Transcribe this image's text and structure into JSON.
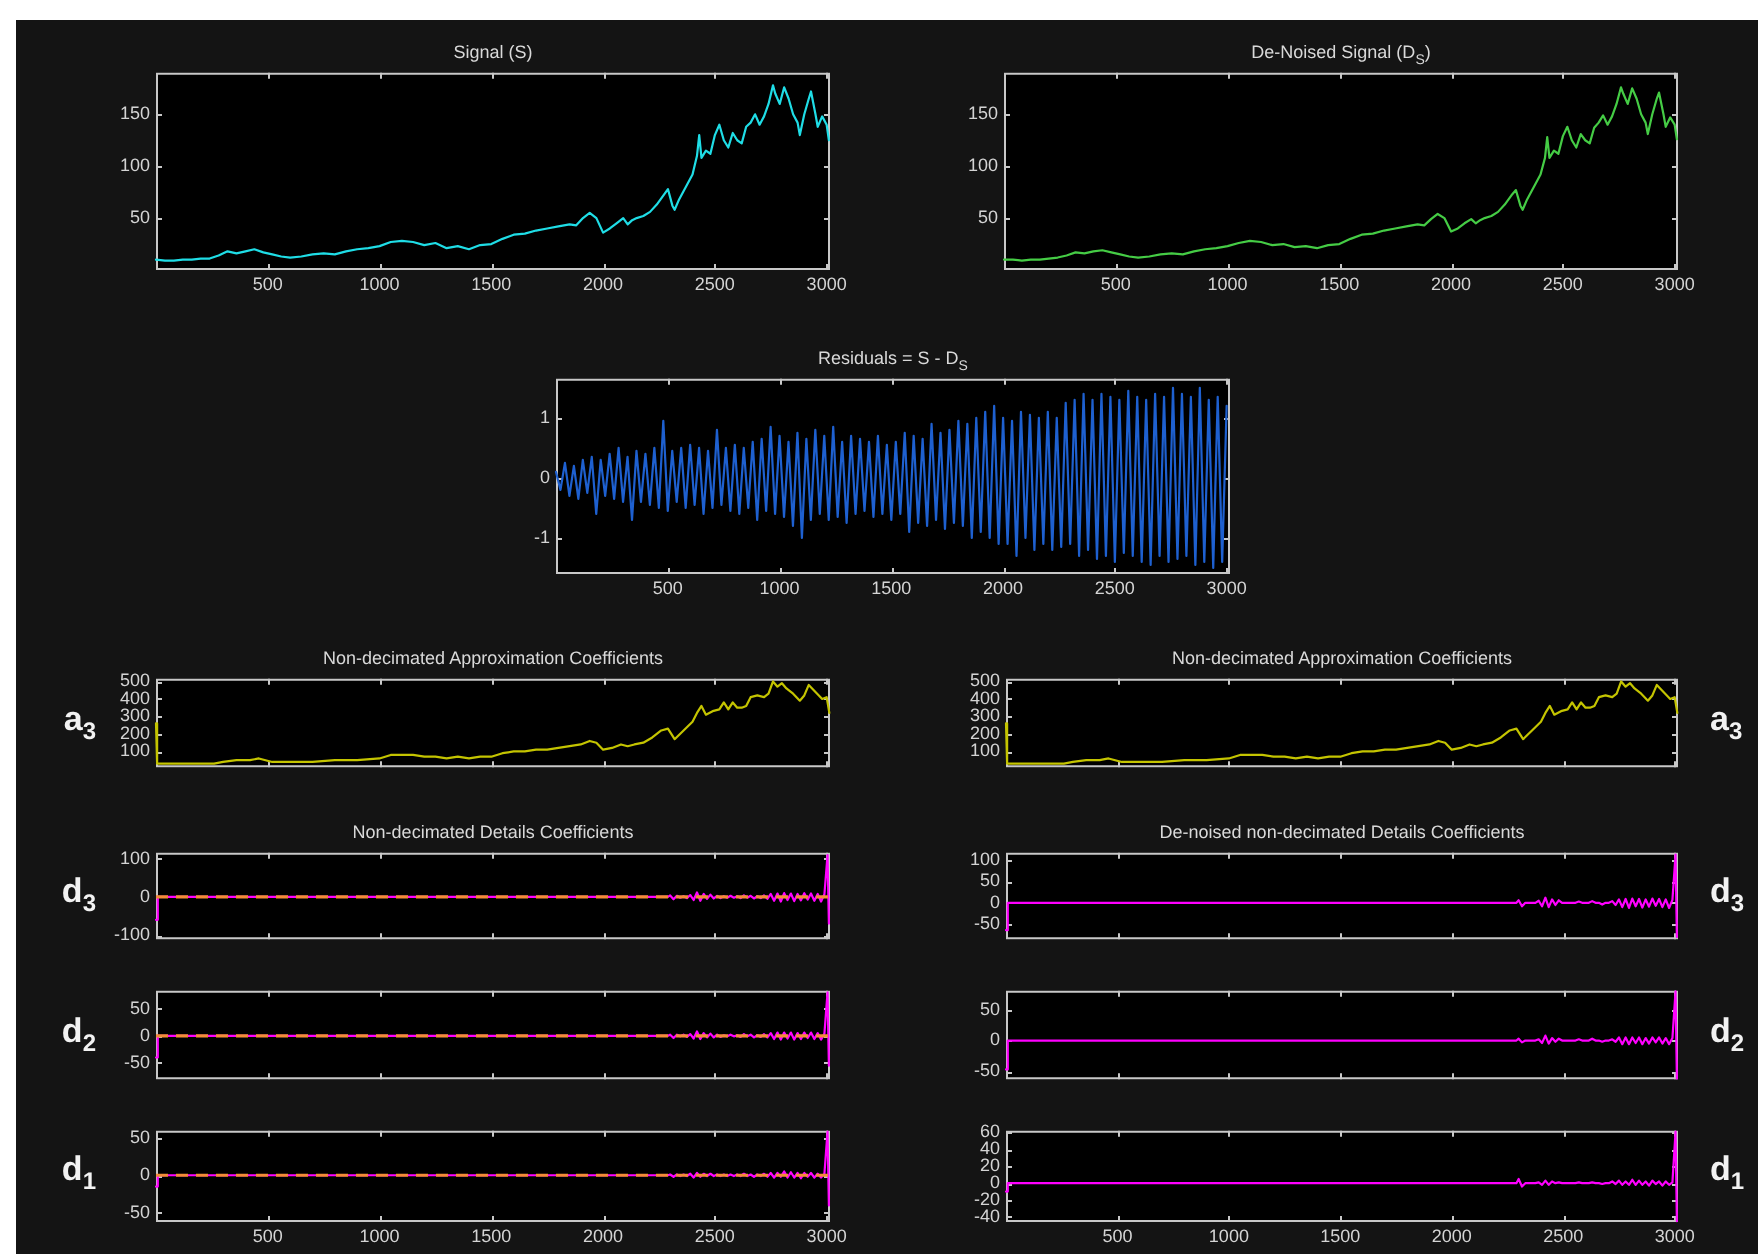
{
  "chart_data": [
    {
      "type": "line",
      "title": "Signal (S)",
      "color": "#1fdde6",
      "xlim": [
        0,
        3015
      ],
      "xticks": [
        500,
        1000,
        1500,
        2000,
        2500,
        3000
      ],
      "ylim": [
        0,
        190
      ],
      "yticks": [
        50,
        100,
        150
      ],
      "x": [
        0,
        40,
        80,
        120,
        160,
        200,
        240,
        280,
        320,
        360,
        400,
        440,
        480,
        520,
        560,
        600,
        650,
        700,
        750,
        800,
        850,
        900,
        950,
        1000,
        1050,
        1100,
        1150,
        1200,
        1250,
        1300,
        1350,
        1400,
        1450,
        1500,
        1550,
        1600,
        1650,
        1700,
        1750,
        1800,
        1850,
        1880,
        1910,
        1940,
        1970,
        2000,
        2030,
        2060,
        2090,
        2110,
        2130,
        2150,
        2180,
        2210,
        2240,
        2270,
        2290,
        2310,
        2320,
        2340,
        2370,
        2400,
        2420,
        2430,
        2440,
        2460,
        2480,
        2500,
        2520,
        2540,
        2560,
        2580,
        2600,
        2620,
        2640,
        2660,
        2680,
        2700,
        2720,
        2740,
        2760,
        2770,
        2790,
        2810,
        2830,
        2850,
        2870,
        2880,
        2900,
        2920,
        2930,
        2950,
        2960,
        2980,
        3000,
        3010
      ],
      "values": [
        10,
        9,
        9,
        10,
        10,
        11,
        11,
        14,
        18,
        16,
        18,
        20,
        17,
        15,
        13,
        12,
        13,
        15,
        16,
        15,
        18,
        20,
        21,
        23,
        27,
        28,
        27,
        24,
        26,
        21,
        23,
        20,
        24,
        25,
        30,
        34,
        35,
        38,
        40,
        42,
        44,
        43,
        50,
        55,
        50,
        36,
        40,
        45,
        50,
        44,
        48,
        50,
        52,
        56,
        63,
        72,
        78,
        62,
        58,
        68,
        80,
        92,
        110,
        130,
        108,
        115,
        112,
        130,
        140,
        125,
        118,
        132,
        125,
        122,
        138,
        142,
        150,
        140,
        148,
        160,
        178,
        170,
        160,
        176,
        165,
        150,
        142,
        130,
        150,
        165,
        172,
        150,
        138,
        148,
        140,
        125
      ]
    },
    {
      "type": "line",
      "title": "De-Noised Signal (D$_{S}$)",
      "color": "#45cc45",
      "xlim": [
        0,
        3015
      ],
      "xticks": [
        500,
        1000,
        1500,
        2000,
        2500,
        3000
      ],
      "ylim": [
        0,
        190
      ],
      "yticks": [
        50,
        100,
        150
      ],
      "x": [
        0,
        40,
        80,
        120,
        160,
        200,
        240,
        280,
        320,
        360,
        400,
        440,
        480,
        520,
        560,
        600,
        650,
        700,
        750,
        800,
        850,
        900,
        950,
        1000,
        1050,
        1100,
        1150,
        1200,
        1250,
        1300,
        1350,
        1400,
        1450,
        1500,
        1550,
        1600,
        1650,
        1700,
        1750,
        1800,
        1850,
        1880,
        1910,
        1940,
        1970,
        2000,
        2030,
        2060,
        2090,
        2110,
        2130,
        2150,
        2180,
        2210,
        2240,
        2270,
        2290,
        2310,
        2320,
        2340,
        2370,
        2400,
        2420,
        2430,
        2440,
        2460,
        2480,
        2500,
        2520,
        2540,
        2560,
        2580,
        2600,
        2620,
        2640,
        2660,
        2680,
        2700,
        2720,
        2740,
        2760,
        2770,
        2790,
        2810,
        2830,
        2850,
        2870,
        2880,
        2900,
        2920,
        2930,
        2950,
        2960,
        2980,
        3000,
        3010
      ],
      "values": [
        10,
        10,
        9,
        10,
        10,
        11,
        12,
        14,
        17,
        16,
        18,
        19,
        17,
        15,
        13,
        12,
        13,
        15,
        16,
        15,
        18,
        20,
        21,
        23,
        26,
        28,
        27,
        24,
        25,
        22,
        23,
        21,
        24,
        25,
        30,
        34,
        35,
        38,
        40,
        42,
        44,
        43,
        49,
        54,
        50,
        37,
        40,
        45,
        49,
        45,
        48,
        50,
        52,
        56,
        63,
        72,
        77,
        62,
        58,
        68,
        80,
        92,
        108,
        128,
        108,
        115,
        112,
        129,
        138,
        125,
        118,
        131,
        125,
        122,
        137,
        142,
        149,
        140,
        148,
        160,
        176,
        170,
        160,
        175,
        165,
        150,
        142,
        131,
        150,
        165,
        171,
        150,
        138,
        147,
        140,
        126
      ]
    },
    {
      "type": "line",
      "title": "Residuals = S - D$_{S}$",
      "color": "#1e60d0",
      "xlim": [
        0,
        3015
      ],
      "xticks": [
        500,
        1000,
        1500,
        2000,
        2500,
        3000
      ],
      "ylim": [
        -1.6,
        1.65
      ],
      "yticks": [
        -1,
        0,
        1
      ],
      "x": [
        0,
        20,
        40,
        60,
        80,
        100,
        120,
        140,
        160,
        180,
        200,
        220,
        240,
        260,
        280,
        300,
        320,
        340,
        360,
        380,
        400,
        420,
        440,
        460,
        480,
        500,
        520,
        540,
        560,
        580,
        600,
        620,
        640,
        660,
        680,
        700,
        720,
        740,
        760,
        780,
        800,
        820,
        840,
        860,
        880,
        900,
        920,
        940,
        960,
        980,
        1000,
        1020,
        1040,
        1060,
        1080,
        1100,
        1120,
        1140,
        1160,
        1180,
        1200,
        1220,
        1240,
        1260,
        1280,
        1300,
        1320,
        1340,
        1360,
        1380,
        1400,
        1420,
        1440,
        1460,
        1480,
        1500,
        1520,
        1540,
        1560,
        1580,
        1600,
        1620,
        1640,
        1660,
        1680,
        1700,
        1720,
        1740,
        1760,
        1780,
        1800,
        1820,
        1840,
        1860,
        1880,
        1900,
        1920,
        1940,
        1960,
        1980,
        2000,
        2020,
        2040,
        2060,
        2080,
        2100,
        2120,
        2140,
        2160,
        2180,
        2200,
        2220,
        2240,
        2260,
        2280,
        2300,
        2320,
        2340,
        2360,
        2380,
        2400,
        2420,
        2440,
        2460,
        2480,
        2500,
        2520,
        2540,
        2560,
        2580,
        2600,
        2620,
        2640,
        2660,
        2680,
        2700,
        2720,
        2740,
        2760,
        2780,
        2800,
        2820,
        2840,
        2860,
        2880,
        2900,
        2920,
        2940,
        2960,
        2980,
        3000
      ],
      "values": [
        0.1,
        -0.2,
        0.25,
        -0.3,
        0.2,
        -0.35,
        0.3,
        -0.25,
        0.35,
        -0.6,
        0.3,
        -0.3,
        0.4,
        -0.35,
        0.5,
        -0.4,
        0.35,
        -0.7,
        0.45,
        -0.4,
        0.4,
        -0.45,
        0.5,
        -0.5,
        0.95,
        -0.55,
        0.45,
        -0.4,
        0.5,
        -0.5,
        0.55,
        -0.45,
        0.5,
        -0.6,
        0.45,
        -0.5,
        0.8,
        -0.45,
        0.5,
        -0.55,
        0.55,
        -0.6,
        0.5,
        -0.5,
        0.6,
        -0.7,
        0.65,
        -0.55,
        0.85,
        -0.6,
        0.7,
        -0.65,
        0.6,
        -0.8,
        0.75,
        -1.0,
        0.65,
        -0.7,
        0.8,
        -0.6,
        0.7,
        -0.7,
        0.85,
        -0.65,
        0.6,
        -0.75,
        0.7,
        -0.6,
        0.65,
        -0.55,
        0.6,
        -0.65,
        0.7,
        -0.6,
        0.55,
        -0.7,
        0.6,
        -0.6,
        0.75,
        -0.9,
        0.7,
        -0.75,
        0.65,
        -0.8,
        0.9,
        -0.7,
        0.75,
        -0.85,
        0.8,
        -0.75,
        0.95,
        -0.8,
        0.9,
        -1.0,
        1.0,
        -0.9,
        1.1,
        -1.0,
        1.2,
        -1.1,
        1.0,
        -1.1,
        0.95,
        -1.3,
        1.1,
        -1.0,
        1.05,
        -1.2,
        1.0,
        -1.1,
        1.1,
        -1.2,
        1.0,
        -1.15,
        1.25,
        -1.1,
        1.3,
        -1.3,
        1.4,
        -1.2,
        1.3,
        -1.35,
        1.4,
        -1.3,
        1.35,
        -1.4,
        1.3,
        -1.25,
        1.45,
        -1.3,
        1.35,
        -1.4,
        1.3,
        -1.45,
        1.4,
        -1.3,
        1.35,
        -1.4,
        1.5,
        -1.35,
        1.4,
        -1.3,
        1.35,
        -1.45,
        1.5,
        -1.4,
        1.3,
        -1.5,
        1.35,
        -1.4,
        1.2
      ]
    },
    {
      "type": "line",
      "title": "Non-decimated Approximation Coefficients",
      "ylabel": "a$_{3}$",
      "tick_labels": "y",
      "color": "#c4c400",
      "xlim": [
        0,
        3015
      ],
      "xticks": [
        500,
        1000,
        1500,
        2000,
        2500,
        3000
      ],
      "ylim": [
        10,
        515
      ],
      "yticks": [
        100,
        200,
        300,
        400,
        500
      ],
      "x": [
        0,
        5,
        40,
        120,
        200,
        260,
        300,
        360,
        420,
        460,
        520,
        600,
        700,
        800,
        900,
        1000,
        1050,
        1100,
        1150,
        1200,
        1250,
        1300,
        1350,
        1400,
        1450,
        1500,
        1550,
        1600,
        1650,
        1700,
        1750,
        1800,
        1850,
        1900,
        1940,
        1970,
        2000,
        2040,
        2080,
        2110,
        2140,
        2180,
        2220,
        2260,
        2290,
        2320,
        2360,
        2400,
        2420,
        2440,
        2460,
        2490,
        2520,
        2540,
        2560,
        2580,
        2600,
        2620,
        2640,
        2660,
        2690,
        2720,
        2740,
        2760,
        2780,
        2800,
        2820,
        2850,
        2880,
        2900,
        2920,
        2950,
        2980,
        3000,
        3012
      ],
      "values": [
        260,
        30,
        30,
        30,
        30,
        30,
        40,
        50,
        50,
        60,
        40,
        40,
        40,
        50,
        50,
        60,
        80,
        80,
        80,
        70,
        70,
        60,
        70,
        60,
        70,
        70,
        90,
        100,
        100,
        110,
        110,
        120,
        130,
        140,
        160,
        150,
        110,
        120,
        140,
        130,
        140,
        150,
        180,
        220,
        230,
        170,
        220,
        270,
        320,
        360,
        310,
        330,
        340,
        380,
        340,
        380,
        350,
        350,
        360,
        410,
        420,
        410,
        430,
        500,
        470,
        490,
        460,
        430,
        390,
        420,
        480,
        440,
        400,
        410,
        320
      ]
    },
    {
      "type": "line",
      "title": "Non-decimated Approximation Coefficients",
      "ylabel": "a$_{3}$",
      "tick_labels": "y",
      "color": "#c4c400",
      "xlim": [
        0,
        3015
      ],
      "xticks": [
        500,
        1000,
        1500,
        2000,
        2500,
        3000
      ],
      "ylim": [
        10,
        515
      ],
      "yticks": [
        100,
        200,
        300,
        400,
        500
      ],
      "x": [
        0,
        5,
        40,
        120,
        200,
        260,
        300,
        360,
        420,
        460,
        520,
        600,
        700,
        800,
        900,
        1000,
        1050,
        1100,
        1150,
        1200,
        1250,
        1300,
        1350,
        1400,
        1450,
        1500,
        1550,
        1600,
        1650,
        1700,
        1750,
        1800,
        1850,
        1900,
        1940,
        1970,
        2000,
        2040,
        2080,
        2110,
        2140,
        2180,
        2220,
        2260,
        2290,
        2320,
        2360,
        2400,
        2420,
        2440,
        2460,
        2490,
        2520,
        2540,
        2560,
        2580,
        2600,
        2620,
        2640,
        2660,
        2690,
        2720,
        2740,
        2760,
        2780,
        2800,
        2820,
        2850,
        2880,
        2900,
        2920,
        2950,
        2980,
        3000,
        3012
      ],
      "values": [
        260,
        30,
        30,
        30,
        30,
        30,
        40,
        50,
        50,
        60,
        40,
        40,
        40,
        50,
        50,
        60,
        80,
        80,
        80,
        70,
        70,
        60,
        70,
        60,
        70,
        70,
        90,
        100,
        100,
        110,
        110,
        120,
        130,
        140,
        160,
        150,
        110,
        120,
        140,
        130,
        140,
        150,
        180,
        220,
        230,
        170,
        220,
        270,
        320,
        360,
        310,
        330,
        340,
        380,
        340,
        380,
        350,
        350,
        360,
        410,
        420,
        410,
        430,
        500,
        470,
        490,
        460,
        430,
        390,
        420,
        480,
        440,
        400,
        410,
        320
      ]
    },
    {
      "type": "line",
      "title": "Non-decimated Details Coefficients",
      "ylabel": "d$_{3}$",
      "tick_labels": "y",
      "color": "#ff00ff",
      "xlim": [
        0,
        3015
      ],
      "xticks": [
        500,
        1000,
        1500,
        2000,
        2500,
        3000
      ],
      "ylim": [
        -111,
        116
      ],
      "yticks": [
        -100,
        0,
        100
      ],
      "ref_lines": [
        {
          "axis": "y",
          "value": 0,
          "color": "#f28c38",
          "line_style": "dashed"
        }
      ],
      "x": [
        0,
        8,
        2290,
        2300,
        2315,
        2330,
        2345,
        2360,
        2375,
        2390,
        2405,
        2420,
        2435,
        2450,
        2465,
        2480,
        2495,
        2510,
        2525,
        2540,
        2555,
        2570,
        2585,
        2600,
        2615,
        2630,
        2645,
        2660,
        2675,
        2690,
        2705,
        2720,
        2735,
        2750,
        2765,
        2780,
        2795,
        2810,
        2825,
        2840,
        2855,
        2870,
        2885,
        2900,
        2915,
        2930,
        2945,
        2960,
        2975,
        2990,
        3004,
        3010
      ],
      "values": [
        -60,
        0,
        0,
        4,
        -6,
        3,
        -2,
        2,
        -3,
        5,
        -8,
        12,
        -10,
        8,
        -5,
        6,
        -4,
        3,
        -3,
        2,
        -2,
        3,
        -2,
        2,
        -3,
        4,
        -2,
        3,
        -4,
        2,
        -3,
        4,
        -5,
        8,
        -10,
        9,
        -12,
        10,
        -8,
        9,
        -11,
        8,
        -9,
        10,
        -7,
        9,
        -10,
        8,
        -12,
        7,
        110,
        -70
      ]
    },
    {
      "type": "line",
      "title": "De-noised non-decimated Details Coefficients",
      "ylabel": "d$_{3}$",
      "tick_labels": "y",
      "color": "#ff00ff",
      "xlim": [
        0,
        3015
      ],
      "xticks": [
        500,
        1000,
        1500,
        2000,
        2500,
        3000
      ],
      "ylim": [
        -85,
        117
      ],
      "yticks": [
        -50,
        0,
        50,
        100
      ],
      "x": [
        0,
        8,
        2290,
        2300,
        2315,
        2330,
        2345,
        2360,
        2375,
        2390,
        2405,
        2420,
        2435,
        2450,
        2465,
        2480,
        2495,
        2510,
        2525,
        2540,
        2555,
        2570,
        2585,
        2600,
        2615,
        2630,
        2645,
        2660,
        2675,
        2690,
        2705,
        2720,
        2735,
        2750,
        2765,
        2780,
        2795,
        2810,
        2825,
        2840,
        2855,
        2870,
        2885,
        2900,
        2915,
        2930,
        2945,
        2960,
        2975,
        2990,
        3004,
        3010
      ],
      "values": [
        -64,
        0,
        0,
        6,
        -8,
        0,
        0,
        0,
        0,
        5,
        -8,
        12,
        -10,
        8,
        -5,
        6,
        0,
        0,
        0,
        0,
        0,
        3,
        0,
        0,
        0,
        4,
        0,
        0,
        -4,
        0,
        0,
        4,
        -5,
        8,
        -10,
        9,
        -12,
        10,
        -8,
        9,
        -11,
        8,
        -9,
        10,
        -7,
        9,
        -10,
        8,
        -12,
        7,
        113,
        -80
      ]
    },
    {
      "type": "line",
      "ylabel": "d$_{2}$",
      "tick_labels": "y",
      "color": "#ff00ff",
      "xlim": [
        0,
        3015
      ],
      "xticks": [
        500,
        1000,
        1500,
        2000,
        2500,
        3000
      ],
      "ylim": [
        -80,
        83
      ],
      "yticks": [
        -50,
        0,
        50
      ],
      "ref_lines": [
        {
          "axis": "y",
          "value": 0,
          "color": "#f28c38",
          "line_style": "dashed"
        }
      ],
      "x": [
        0,
        8,
        2290,
        2300,
        2315,
        2330,
        2345,
        2360,
        2375,
        2390,
        2405,
        2420,
        2435,
        2450,
        2465,
        2480,
        2495,
        2510,
        2525,
        2540,
        2555,
        2570,
        2585,
        2600,
        2615,
        2630,
        2645,
        2660,
        2675,
        2690,
        2705,
        2720,
        2735,
        2750,
        2765,
        2780,
        2795,
        2810,
        2825,
        2840,
        2855,
        2870,
        2885,
        2900,
        2915,
        2930,
        2945,
        2960,
        2975,
        2990,
        3004,
        3010
      ],
      "values": [
        -40,
        0,
        0,
        2,
        -4,
        2,
        -1,
        2,
        -2,
        3,
        -5,
        8,
        -6,
        5,
        -3,
        4,
        -3,
        2,
        -2,
        1,
        -1,
        2,
        -1,
        1,
        -2,
        3,
        -1,
        2,
        -3,
        1,
        -2,
        3,
        -3,
        5,
        -6,
        6,
        -7,
        6,
        -5,
        6,
        -7,
        5,
        -6,
        6,
        -4,
        6,
        -6,
        5,
        -7,
        4,
        80,
        -55
      ]
    },
    {
      "type": "line",
      "ylabel": "d$_{2}$",
      "tick_labels": "y",
      "color": "#ff00ff",
      "xlim": [
        0,
        3015
      ],
      "xticks": [
        500,
        1000,
        1500,
        2000,
        2500,
        3000
      ],
      "ylim": [
        -63,
        81
      ],
      "yticks": [
        -50,
        0,
        50
      ],
      "x": [
        0,
        8,
        2290,
        2300,
        2315,
        2330,
        2345,
        2360,
        2375,
        2390,
        2405,
        2420,
        2435,
        2450,
        2465,
        2480,
        2495,
        2510,
        2525,
        2540,
        2555,
        2570,
        2585,
        2600,
        2615,
        2630,
        2645,
        2660,
        2675,
        2690,
        2705,
        2720,
        2735,
        2750,
        2765,
        2780,
        2795,
        2810,
        2825,
        2840,
        2855,
        2870,
        2885,
        2900,
        2915,
        2930,
        2945,
        2960,
        2975,
        2990,
        3004,
        3010
      ],
      "values": [
        -47,
        0,
        0,
        3,
        -3,
        0,
        0,
        0,
        0,
        2,
        -4,
        8,
        -5,
        4,
        -2,
        3,
        0,
        0,
        0,
        0,
        0,
        2,
        0,
        0,
        0,
        3,
        0,
        0,
        -2,
        0,
        0,
        2,
        -2,
        5,
        -6,
        5,
        -6,
        5,
        -4,
        5,
        -6,
        4,
        -5,
        5,
        -3,
        5,
        -5,
        4,
        -6,
        4,
        80,
        -62
      ]
    },
    {
      "type": "line",
      "ylabel": "d$_{1}$",
      "color": "#ff00ff",
      "xlim": [
        0,
        3015
      ],
      "xticks": [
        500,
        1000,
        1500,
        2000,
        2500,
        3000
      ],
      "ylim": [
        -62,
        59
      ],
      "yticks": [
        -50,
        0,
        50
      ],
      "ref_lines": [
        {
          "axis": "y",
          "value": 0,
          "color": "#f28c38",
          "line_style": "dashed"
        }
      ],
      "x": [
        0,
        8,
        2290,
        2300,
        2315,
        2330,
        2345,
        2360,
        2375,
        2390,
        2405,
        2420,
        2435,
        2450,
        2465,
        2480,
        2495,
        2510,
        2525,
        2540,
        2555,
        2570,
        2585,
        2600,
        2615,
        2630,
        2645,
        2660,
        2675,
        2690,
        2705,
        2720,
        2735,
        2750,
        2765,
        2780,
        2795,
        2810,
        2825,
        2840,
        2855,
        2870,
        2885,
        2900,
        2915,
        2930,
        2945,
        2960,
        2975,
        2990,
        3004,
        3010
      ],
      "values": [
        -15,
        0,
        0,
        1,
        -2,
        1,
        -1,
        1,
        -1,
        2,
        -3,
        3,
        -2,
        2,
        -1,
        2,
        -1,
        1,
        -1,
        1,
        -1,
        1,
        -1,
        1,
        -1,
        2,
        -1,
        1,
        -2,
        1,
        -1,
        2,
        -2,
        3,
        -3,
        3,
        -2,
        5,
        -3,
        4,
        -3,
        3,
        -4,
        3,
        -2,
        3,
        -3,
        2,
        -3,
        2,
        58,
        -40
      ]
    },
    {
      "type": "line",
      "ylabel": "d$_{1}$",
      "color": "#ff00ff",
      "xlim": [
        0,
        3015
      ],
      "xticks": [
        500,
        1000,
        1500,
        2000,
        2500,
        3000
      ],
      "ylim": [
        -46,
        62
      ],
      "yticks": [
        -40,
        -20,
        0,
        20,
        40,
        60
      ],
      "x": [
        0,
        8,
        2290,
        2300,
        2315,
        2330,
        2345,
        2360,
        2375,
        2390,
        2405,
        2420,
        2435,
        2450,
        2465,
        2480,
        2495,
        2510,
        2525,
        2540,
        2555,
        2570,
        2585,
        2600,
        2615,
        2630,
        2645,
        2660,
        2675,
        2690,
        2705,
        2720,
        2735,
        2750,
        2765,
        2780,
        2795,
        2810,
        2825,
        2840,
        2855,
        2870,
        2885,
        2900,
        2915,
        2930,
        2945,
        2960,
        2975,
        2990,
        3004,
        3010
      ],
      "values": [
        -10,
        0,
        0,
        5,
        -4,
        0,
        0,
        0,
        0,
        1,
        -2,
        3,
        -2,
        2,
        0,
        1,
        0,
        0,
        0,
        0,
        0,
        1,
        0,
        0,
        0,
        1,
        0,
        0,
        -1,
        0,
        0,
        2,
        -1,
        3,
        -2,
        2,
        -2,
        4,
        -2,
        3,
        -2,
        2,
        -3,
        3,
        -1,
        2,
        -3,
        2,
        -2,
        1,
        61,
        -45
      ]
    }
  ]
}
